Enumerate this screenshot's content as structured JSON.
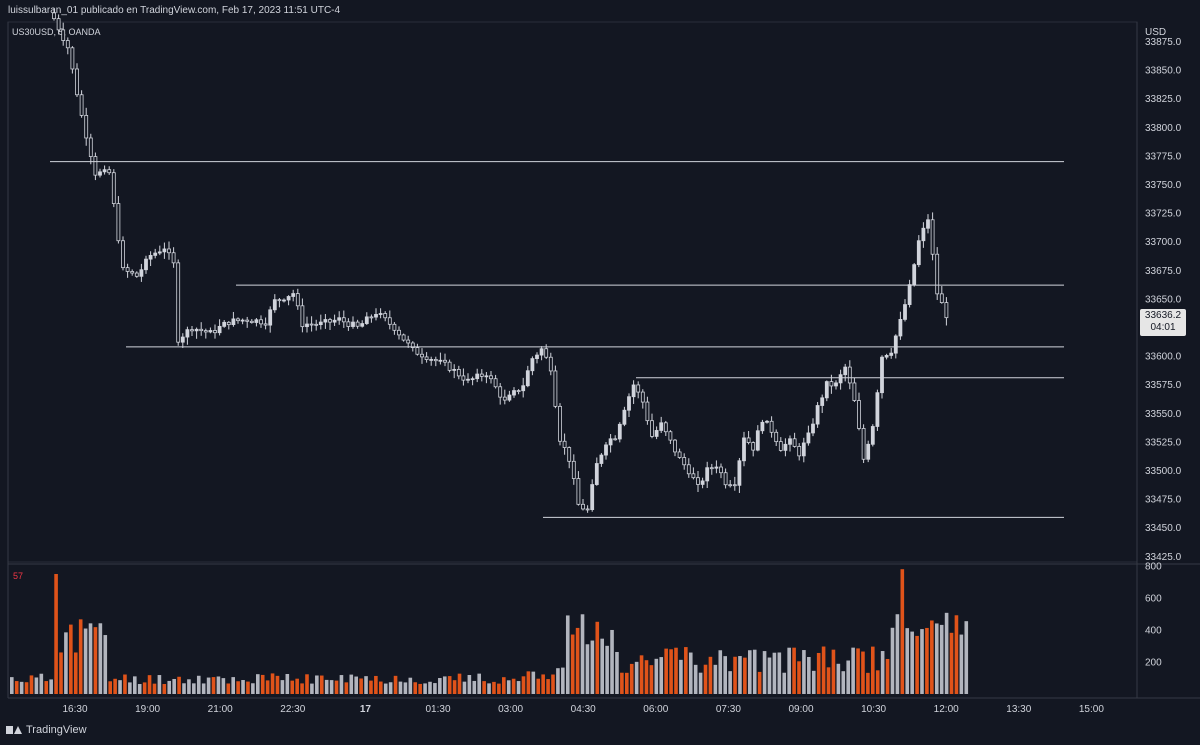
{
  "header": {
    "attribution": "luissulbaran_01 publicado en TradingView.com, Feb 17, 2023 11:51 UTC-4",
    "symbol": "US30USD, 5, OANDA"
  },
  "footer": {
    "brand": "TradingView"
  },
  "colors": {
    "background": "#131722",
    "candle": "#d1d4dc",
    "volume_up": "#b2b5be",
    "volume_down": "#e0531a",
    "line": "#d1d4dc",
    "text": "#d1d4dc"
  },
  "chart_data": {
    "type": "candlestick",
    "symbol": "US30USD",
    "currency_label": "USD",
    "timeframe": "5",
    "broker": "OANDA",
    "price_axis": {
      "ticks": [
        "33875.0",
        "33850.0",
        "33825.0",
        "33800.0",
        "33775.0",
        "33750.0",
        "33725.0",
        "33700.0",
        "33675.0",
        "33650.0",
        "33625.0",
        "33600.0",
        "33575.0",
        "33550.0",
        "33525.0",
        "33500.0",
        "33475.0",
        "33450.0",
        "33425.0"
      ],
      "range": [
        33420,
        33892
      ]
    },
    "time_axis": {
      "ticks": [
        "16:30",
        "19:00",
        "21:00",
        "22:30",
        "17",
        "01:30",
        "03:00",
        "04:30",
        "06:00",
        "07:30",
        "09:00",
        "10:30",
        "12:00",
        "13:30",
        "15:00"
      ]
    },
    "last_price": "33636.2",
    "countdown": "04:01",
    "horizontal_levels": [
      33770,
      33662,
      33608,
      33581,
      33459
    ],
    "price_path": [
      [
        0,
        33895
      ],
      [
        3,
        33870
      ],
      [
        6,
        33810
      ],
      [
        9,
        33760
      ],
      [
        12,
        33760
      ],
      [
        15,
        33675
      ],
      [
        18,
        33670
      ],
      [
        21,
        33688
      ],
      [
        24,
        33695
      ],
      [
        26,
        33680
      ],
      [
        27,
        33615
      ],
      [
        30,
        33625
      ],
      [
        34,
        33620
      ],
      [
        38,
        33630
      ],
      [
        42,
        33632
      ],
      [
        46,
        33630
      ],
      [
        48,
        33648
      ],
      [
        52,
        33655
      ],
      [
        54,
        33628
      ],
      [
        58,
        33628
      ],
      [
        62,
        33632
      ],
      [
        66,
        33625
      ],
      [
        70,
        33638
      ],
      [
        74,
        33625
      ],
      [
        78,
        33605
      ],
      [
        82,
        33598
      ],
      [
        86,
        33590
      ],
      [
        90,
        33578
      ],
      [
        94,
        33585
      ],
      [
        98,
        33560
      ],
      [
        102,
        33575
      ],
      [
        104,
        33598
      ],
      [
        106,
        33606
      ],
      [
        108,
        33590
      ],
      [
        110,
        33528
      ],
      [
        112,
        33510
      ],
      [
        114,
        33470
      ],
      [
        116,
        33465
      ],
      [
        118,
        33505
      ],
      [
        120,
        33525
      ],
      [
        122,
        33530
      ],
      [
        124,
        33555
      ],
      [
        126,
        33575
      ],
      [
        128,
        33560
      ],
      [
        130,
        33530
      ],
      [
        132,
        33540
      ],
      [
        134,
        33525
      ],
      [
        136,
        33510
      ],
      [
        138,
        33500
      ],
      [
        140,
        33485
      ],
      [
        142,
        33500
      ],
      [
        144,
        33505
      ],
      [
        146,
        33490
      ],
      [
        148,
        33490
      ],
      [
        150,
        33530
      ],
      [
        152,
        33520
      ],
      [
        154,
        33545
      ],
      [
        156,
        33535
      ],
      [
        158,
        33520
      ],
      [
        160,
        33525
      ],
      [
        162,
        33515
      ],
      [
        164,
        33530
      ],
      [
        166,
        33555
      ],
      [
        168,
        33575
      ],
      [
        170,
        33575
      ],
      [
        172,
        33590
      ],
      [
        174,
        33560
      ],
      [
        176,
        33510
      ],
      [
        178,
        33540
      ],
      [
        180,
        33600
      ],
      [
        182,
        33605
      ],
      [
        184,
        33630
      ],
      [
        186,
        33660
      ],
      [
        188,
        33700
      ],
      [
        190,
        33720
      ],
      [
        192,
        33655
      ],
      [
        194,
        33636
      ]
    ],
    "volume_axis": {
      "ticks": [
        "800",
        "600",
        "400",
        "200"
      ],
      "max": 800
    },
    "volume_label": "57"
  }
}
